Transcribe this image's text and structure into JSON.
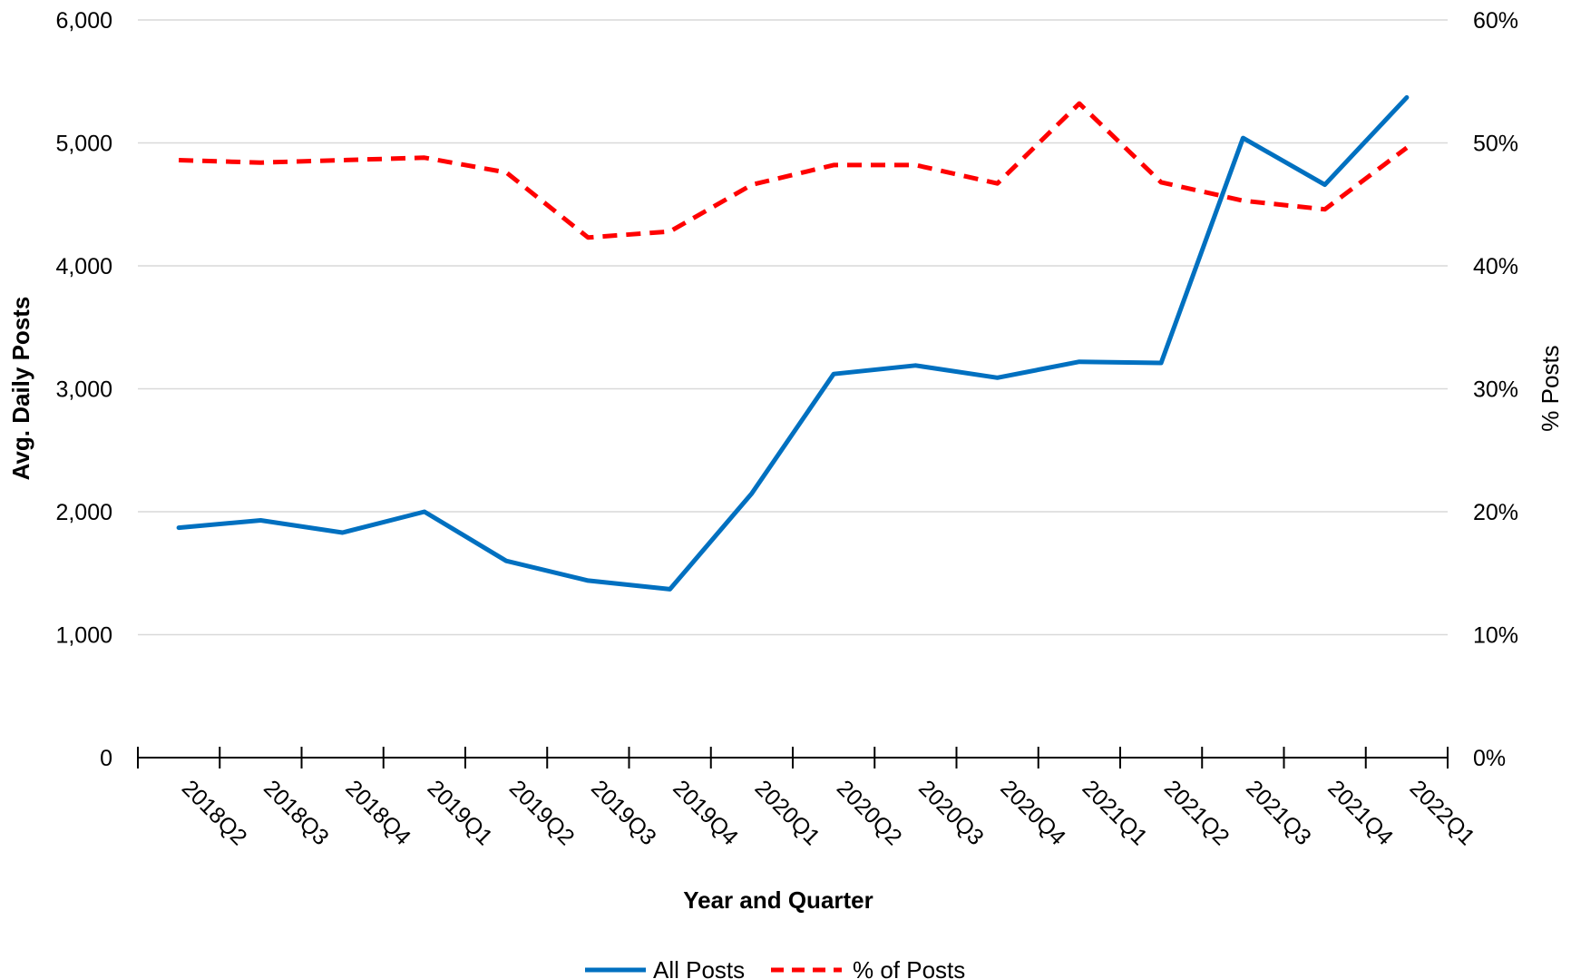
{
  "chart_data": {
    "type": "line",
    "title": "",
    "xlabel": "Year and Quarter",
    "ylabel": "Avg. Daily Posts",
    "y2label": "% Posts",
    "categories": [
      "2018Q2",
      "2018Q3",
      "2018Q4",
      "2019Q1",
      "2019Q2",
      "2019Q3",
      "2019Q4",
      "2020Q1",
      "2020Q2",
      "2020Q3",
      "2020Q4",
      "2021Q1",
      "2021Q2",
      "2021Q3",
      "2021Q4",
      "2022Q1"
    ],
    "ylim": [
      0,
      6000
    ],
    "y2lim": [
      0,
      60
    ],
    "yticks": [
      "0",
      "1,000",
      "2,000",
      "3,000",
      "4,000",
      "5,000",
      "6,000"
    ],
    "y2ticks": [
      "0%",
      "10%",
      "20%",
      "30%",
      "40%",
      "50%",
      "60%"
    ],
    "grid": true,
    "legend_position": "bottom",
    "series": [
      {
        "name": "All Posts",
        "axis": "left",
        "color": "#0070c0",
        "style": "solid",
        "values": [
          1870,
          1930,
          1830,
          2000,
          1600,
          1440,
          1370,
          2150,
          3120,
          3190,
          3090,
          3220,
          3210,
          5040,
          4660,
          5370
        ]
      },
      {
        "name": "% of Posts",
        "axis": "right",
        "color": "#ff0000",
        "style": "dashed",
        "values": [
          48.6,
          48.4,
          48.6,
          48.8,
          47.6,
          42.3,
          42.8,
          46.6,
          48.2,
          48.2,
          46.7,
          53.2,
          46.8,
          45.3,
          44.6,
          49.6
        ]
      }
    ]
  }
}
